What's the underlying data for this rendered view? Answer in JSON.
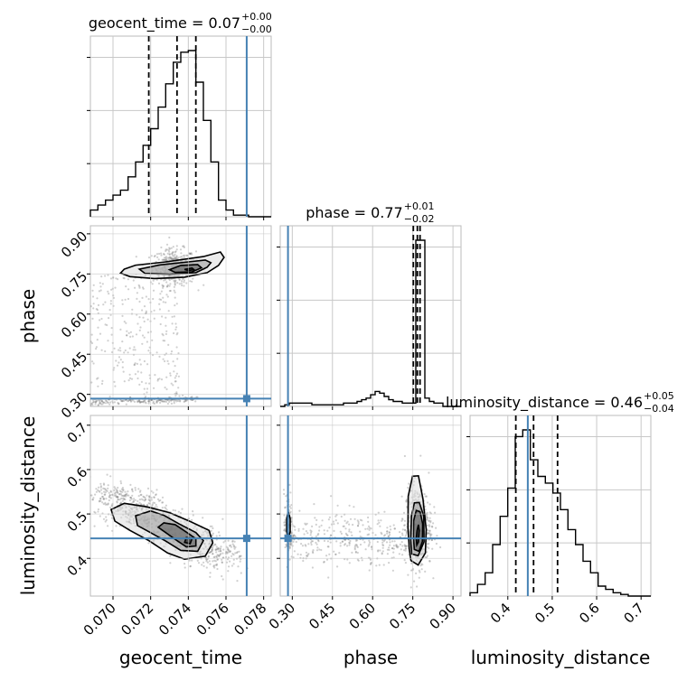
{
  "chart_data": {
    "type": "corner",
    "truth_color": "#4682b4",
    "grid": true,
    "parameters": [
      {
        "name": "geocent_time",
        "xlabel": "geocent_time",
        "title": "geocent_time = 0.07",
        "title_plus": "+0.00",
        "title_minus": "−0.00",
        "range": [
          0.0688,
          0.0784
        ],
        "ticks": [
          0.07,
          0.072,
          0.074,
          0.076,
          0.078
        ],
        "tick_labels": [
          "0.070",
          "0.072",
          "0.074",
          "0.076",
          "0.078"
        ],
        "truth": 0.0771,
        "quantiles": [
          0.0719,
          0.0734,
          0.0744
        ],
        "histogram": [
          0.04,
          0.07,
          0.1,
          0.13,
          0.16,
          0.24,
          0.33,
          0.43,
          0.53,
          0.66,
          0.8,
          0.93,
          0.99,
          1.0,
          0.81,
          0.58,
          0.33,
          0.1,
          0.04,
          0.01,
          0.01,
          0.0,
          0.0,
          0.0
        ]
      },
      {
        "name": "phase",
        "ylabel": "phase",
        "xlabel": "phase",
        "title": "phase = 0.77",
        "title_plus": "+0.01",
        "title_minus": "−0.02",
        "range": [
          0.255,
          0.93
        ],
        "ticks": [
          0.3,
          0.45,
          0.6,
          0.75,
          0.9
        ],
        "tick_labels": [
          "0.30",
          "0.45",
          "0.60",
          "0.75",
          "0.90"
        ],
        "truth": 0.284,
        "quantiles": [
          0.752,
          0.767,
          0.777
        ],
        "histogram": [
          0.0,
          0.01,
          0.02,
          0.02,
          0.02,
          0.02,
          0.02,
          0.01,
          0.01,
          0.01,
          0.01,
          0.01,
          0.01,
          0.01,
          0.02,
          0.02,
          0.02,
          0.03,
          0.04,
          0.05,
          0.07,
          0.09,
          0.08,
          0.06,
          0.04,
          0.03,
          0.03,
          0.02,
          0.02,
          0.02,
          1.0,
          1.0,
          0.05,
          0.03,
          0.02,
          0.02,
          0.0,
          0.0,
          0.0,
          0.0
        ]
      },
      {
        "name": "luminosity_distance",
        "ylabel": "luminosity_distance",
        "xlabel": "luminosity_distance",
        "title": "luminosity_distance = 0.46",
        "title_plus": "+0.05",
        "title_minus": "−0.04",
        "range": [
          0.315,
          0.722
        ],
        "ticks": [
          0.4,
          0.5,
          0.6,
          0.7
        ],
        "tick_labels": [
          "0.4",
          "0.5",
          "0.6",
          "0.7"
        ],
        "truth": 0.445,
        "quantiles": [
          0.418,
          0.458,
          0.512
        ],
        "histogram": [
          0.02,
          0.07,
          0.14,
          0.31,
          0.48,
          0.65,
          0.96,
          1.0,
          0.82,
          0.72,
          0.68,
          0.62,
          0.52,
          0.4,
          0.31,
          0.21,
          0.14,
          0.06,
          0.04,
          0.02,
          0.01,
          0.0,
          0.0,
          0.0
        ]
      }
    ],
    "pairs": [
      {
        "x_param": 0,
        "y_param": 1,
        "contours": [
          [
            [
              0.0738,
              0.767
            ],
            [
              0.0742,
              0.772
            ],
            [
              0.0743,
              0.766
            ],
            [
              0.074,
              0.763
            ]
          ],
          [
            [
              0.073,
              0.766
            ],
            [
              0.0736,
              0.782
            ],
            [
              0.0745,
              0.785
            ],
            [
              0.0747,
              0.773
            ],
            [
              0.0742,
              0.758
            ],
            [
              0.0733,
              0.756
            ]
          ],
          [
            [
              0.0714,
              0.768
            ],
            [
              0.0725,
              0.784
            ],
            [
              0.074,
              0.795
            ],
            [
              0.0749,
              0.802
            ],
            [
              0.0752,
              0.792
            ],
            [
              0.075,
              0.775
            ],
            [
              0.0744,
              0.755
            ],
            [
              0.073,
              0.749
            ],
            [
              0.0717,
              0.752
            ]
          ],
          [
            [
              0.0706,
              0.768
            ],
            [
              0.0712,
              0.783
            ],
            [
              0.0728,
              0.795
            ],
            [
              0.0748,
              0.815
            ],
            [
              0.0757,
              0.832
            ],
            [
              0.0759,
              0.812
            ],
            [
              0.0756,
              0.782
            ],
            [
              0.075,
              0.755
            ],
            [
              0.0738,
              0.738
            ],
            [
              0.0722,
              0.733
            ],
            [
              0.0709,
              0.74
            ],
            [
              0.0704,
              0.753
            ]
          ]
        ]
      },
      {
        "x_param": 0,
        "y_param": 2,
        "contours": [
          [
            [
              0.0738,
              0.436
            ],
            [
              0.0739,
              0.447
            ],
            [
              0.0742,
              0.445
            ],
            [
              0.0741,
              0.433
            ]
          ],
          [
            [
              0.0727,
              0.48
            ],
            [
              0.0733,
              0.476
            ],
            [
              0.0739,
              0.459
            ],
            [
              0.0744,
              0.444
            ],
            [
              0.0744,
              0.428
            ],
            [
              0.0739,
              0.426
            ],
            [
              0.0734,
              0.44
            ],
            [
              0.0728,
              0.458
            ],
            [
              0.0724,
              0.47
            ]
          ],
          [
            [
              0.072,
              0.507
            ],
            [
              0.0727,
              0.497
            ],
            [
              0.0735,
              0.478
            ],
            [
              0.0744,
              0.458
            ],
            [
              0.0748,
              0.44
            ],
            [
              0.0745,
              0.416
            ],
            [
              0.0736,
              0.418
            ],
            [
              0.0728,
              0.439
            ],
            [
              0.0719,
              0.46
            ],
            [
              0.0713,
              0.474
            ],
            [
              0.0712,
              0.496
            ]
          ],
          [
            [
              0.0706,
              0.524
            ],
            [
              0.0718,
              0.516
            ],
            [
              0.073,
              0.503
            ],
            [
              0.0741,
              0.483
            ],
            [
              0.0751,
              0.463
            ],
            [
              0.0753,
              0.435
            ],
            [
              0.0749,
              0.405
            ],
            [
              0.0738,
              0.398
            ],
            [
              0.0729,
              0.412
            ],
            [
              0.0719,
              0.44
            ],
            [
              0.0709,
              0.463
            ],
            [
              0.0701,
              0.484
            ],
            [
              0.0699,
              0.51
            ]
          ]
        ]
      },
      {
        "x_param": 1,
        "y_param": 2,
        "contours": [
          [
            [
              0.765,
              0.43
            ],
            [
              0.771,
              0.437
            ],
            [
              0.774,
              0.463
            ],
            [
              0.771,
              0.476
            ],
            [
              0.766,
              0.463
            ],
            [
              0.763,
              0.445
            ]
          ],
          [
            [
              0.756,
              0.42
            ],
            [
              0.773,
              0.416
            ],
            [
              0.786,
              0.438
            ],
            [
              0.787,
              0.478
            ],
            [
              0.777,
              0.505
            ],
            [
              0.763,
              0.508
            ],
            [
              0.753,
              0.485
            ],
            [
              0.752,
              0.446
            ]
          ],
          [
            [
              0.746,
              0.41
            ],
            [
              0.77,
              0.406
            ],
            [
              0.792,
              0.437
            ],
            [
              0.791,
              0.495
            ],
            [
              0.774,
              0.526
            ],
            [
              0.756,
              0.525
            ],
            [
              0.745,
              0.495
            ],
            [
              0.742,
              0.44
            ]
          ],
          [
            [
              0.743,
              0.395
            ],
            [
              0.77,
              0.385
            ],
            [
              0.797,
              0.412
            ],
            [
              0.8,
              0.465
            ],
            [
              0.788,
              0.534
            ],
            [
              0.771,
              0.586
            ],
            [
              0.749,
              0.585
            ],
            [
              0.733,
              0.54
            ],
            [
              0.732,
              0.47
            ],
            [
              0.737,
              0.42
            ]
          ],
          [
            [
              0.285,
              0.445
            ],
            [
              0.292,
              0.46
            ],
            [
              0.292,
              0.49
            ],
            [
              0.285,
              0.505
            ],
            [
              0.279,
              0.49
            ],
            [
              0.279,
              0.46
            ]
          ]
        ]
      }
    ]
  }
}
